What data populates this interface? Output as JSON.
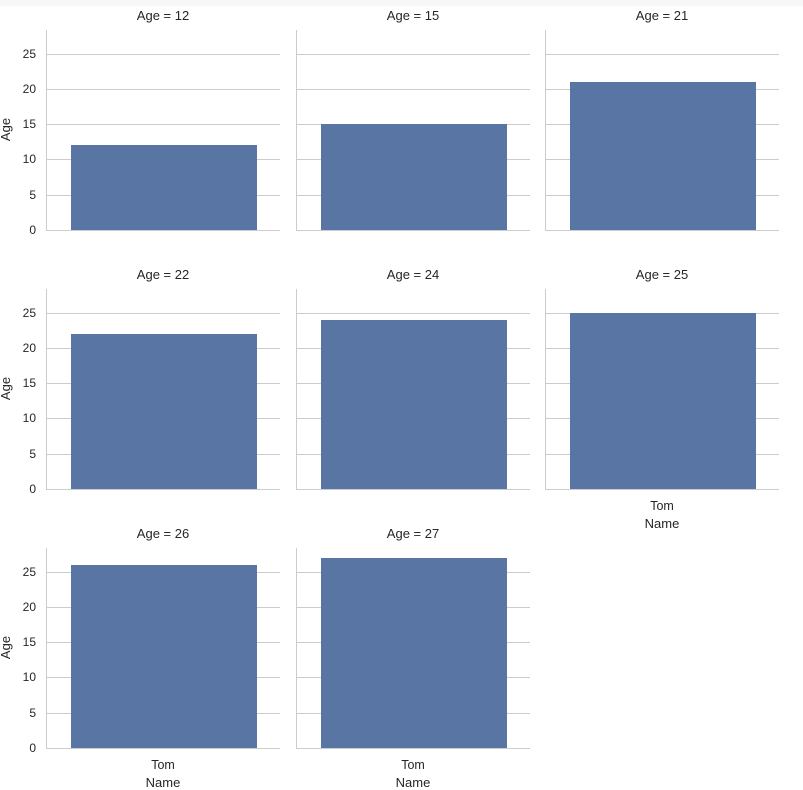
{
  "chart_data": {
    "type": "bar",
    "layout": "facet-grid",
    "facet_variable": "Age",
    "xlabel": "Name",
    "ylabel": "Age",
    "ylim": [
      0,
      28.35
    ],
    "yticks": [
      0,
      5,
      10,
      15,
      20,
      25
    ],
    "grid": true,
    "bar_color": "#5975a4",
    "panels": [
      {
        "title": "Age = 12",
        "categories": [
          "Tom"
        ],
        "values": [
          12
        ]
      },
      {
        "title": "Age = 15",
        "categories": [
          "Tom"
        ],
        "values": [
          15
        ]
      },
      {
        "title": "Age = 21",
        "categories": [
          "Tom"
        ],
        "values": [
          21
        ]
      },
      {
        "title": "Age = 22",
        "categories": [
          "Tom"
        ],
        "values": [
          22
        ]
      },
      {
        "title": "Age = 24",
        "categories": [
          "Tom"
        ],
        "values": [
          24
        ]
      },
      {
        "title": "Age = 25",
        "categories": [
          "Tom"
        ],
        "values": [
          25
        ]
      },
      {
        "title": "Age = 26",
        "categories": [
          "Tom"
        ],
        "values": [
          26
        ]
      },
      {
        "title": "Age = 27",
        "categories": [
          "Tom"
        ],
        "values": [
          27
        ]
      }
    ]
  },
  "labels": {
    "xtick": "Tom",
    "xlabel": "Name",
    "ylabel": "Age",
    "yticks": [
      "0",
      "5",
      "10",
      "15",
      "20",
      "25"
    ]
  }
}
